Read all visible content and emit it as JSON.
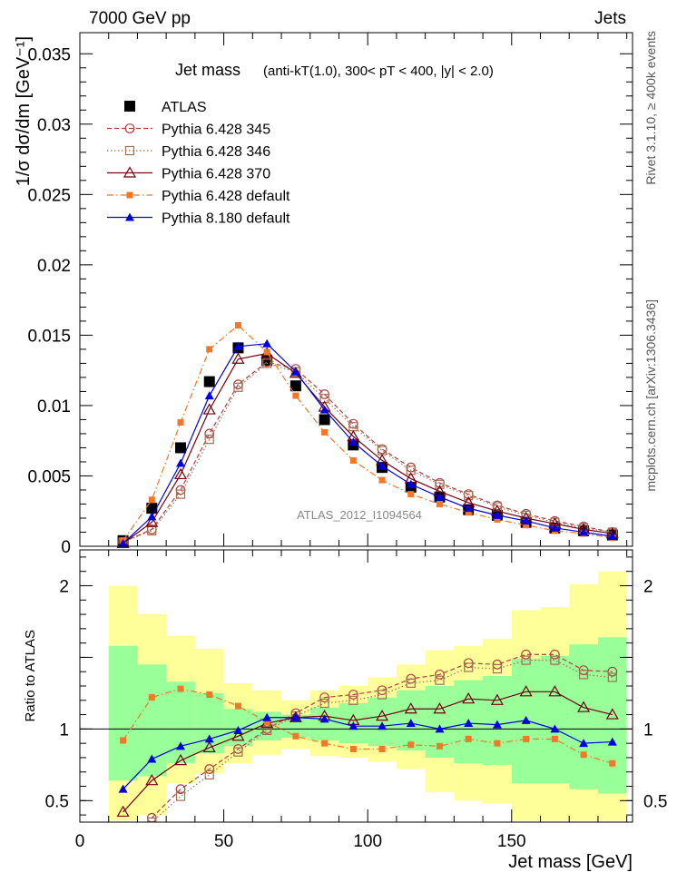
{
  "header": {
    "energy_label": "7000 GeV pp",
    "category_label": "Jets"
  },
  "side_labels": {
    "rivet": "Rivet 3.1.10, ≥ 400k events",
    "mcplots": "mcplots.cern.ch [arXiv:1306.3436]"
  },
  "chart_data": [
    {
      "type": "line",
      "title": "Jet mass",
      "title_detail": "(anti-kT(1.0), 300< pT < 400, |y| < 2.0)",
      "ylabel": "1/σ dσ/dm [GeV⁻¹]",
      "xlim": [
        0,
        192
      ],
      "ylim": [
        0,
        0.0365
      ],
      "yticks": [
        0,
        0.005,
        0.01,
        0.015,
        0.02,
        0.025,
        0.03,
        0.035
      ],
      "ytick_labels": [
        "0",
        "0.005",
        "0.01",
        "0.015",
        "0.02",
        "0.025",
        "0.03",
        "0.035"
      ],
      "analysis_label": "ATLAS_2012_I1094564",
      "legend_position": "top-left",
      "x": [
        15,
        25,
        35,
        45,
        55,
        65,
        75,
        85,
        95,
        105,
        115,
        125,
        135,
        145,
        155,
        165,
        175,
        185
      ],
      "series": [
        {
          "name": "ATLAS",
          "color": "#000000",
          "marker": "square-filled",
          "line": "none",
          "values": [
            0.0004,
            0.0027,
            0.007,
            0.0117,
            0.0141,
            0.0132,
            0.0114,
            0.009,
            0.0072,
            0.0056,
            0.0042,
            0.0035,
            0.0026,
            0.0022,
            0.0017,
            0.0013,
            0.0011,
            0.0008
          ]
        },
        {
          "name": "Pythia 6.428 345",
          "color": "#b04040",
          "marker": "circle-open",
          "line": "dashed",
          "values": [
            0.0003,
            0.0012,
            0.004,
            0.008,
            0.0115,
            0.0131,
            0.0126,
            0.0108,
            0.0087,
            0.0069,
            0.0056,
            0.0045,
            0.0037,
            0.0029,
            0.0023,
            0.0018,
            0.0014,
            0.001
          ]
        },
        {
          "name": "Pythia 6.428 346",
          "color": "#a07050",
          "marker": "square-open",
          "line": "dotted",
          "values": [
            0.0003,
            0.0011,
            0.0037,
            0.0076,
            0.0113,
            0.013,
            0.0124,
            0.0105,
            0.0085,
            0.0068,
            0.0054,
            0.0044,
            0.0036,
            0.0028,
            0.0022,
            0.0017,
            0.0013,
            0.001
          ]
        },
        {
          "name": "Pythia 6.428 370",
          "color": "#700010",
          "marker": "triangle-open",
          "line": "solid",
          "values": [
            0.0002,
            0.0017,
            0.0051,
            0.0097,
            0.0133,
            0.0137,
            0.0123,
            0.0099,
            0.0078,
            0.0061,
            0.0048,
            0.0039,
            0.0031,
            0.0025,
            0.002,
            0.0016,
            0.0012,
            0.0009
          ]
        },
        {
          "name": "Pythia 6.428 default",
          "color": "#f07828",
          "marker": "square-filled-small",
          "line": "dashdot",
          "values": [
            0.0004,
            0.0033,
            0.0088,
            0.014,
            0.0157,
            0.0138,
            0.0107,
            0.0081,
            0.0061,
            0.0047,
            0.0037,
            0.003,
            0.0024,
            0.0019,
            0.0015,
            0.0011,
            0.0009,
            0.0006
          ]
        },
        {
          "name": "Pythia 8.180 default",
          "color": "#0000e0",
          "marker": "triangle-filled",
          "line": "solid",
          "values": [
            0.0002,
            0.0021,
            0.0059,
            0.0107,
            0.0142,
            0.0144,
            0.0124,
            0.0097,
            0.0074,
            0.0057,
            0.0044,
            0.0035,
            0.0027,
            0.0022,
            0.0018,
            0.0013,
            0.001,
            0.0007
          ]
        }
      ]
    },
    {
      "type": "line",
      "xlabel": "Jet mass [GeV]",
      "ylabel": "Ratio to ATLAS",
      "xlim": [
        0,
        192
      ],
      "ylim": [
        0.35,
        2.25
      ],
      "xticks": [
        0,
        50,
        100,
        150
      ],
      "xtick_labels": [
        "0",
        "50",
        "100",
        "150"
      ],
      "yticks": [
        0.5,
        1,
        2
      ],
      "ytick_labels": [
        "0.5",
        "1",
        "2"
      ],
      "reference_line": 1,
      "bands": {
        "bin_edges": [
          10,
          20,
          30,
          40,
          50,
          60,
          70,
          80,
          90,
          100,
          110,
          120,
          130,
          140,
          150,
          160,
          170,
          180,
          190
        ],
        "outer_color": "#ffff99",
        "inner_color": "#99ff99",
        "outer_low": [
          0.36,
          0.4,
          0.62,
          0.69,
          0.76,
          0.82,
          0.86,
          0.81,
          0.8,
          0.77,
          0.72,
          0.56,
          0.5,
          0.48,
          0.36,
          0.36,
          0.36,
          0.36
        ],
        "outer_high": [
          2.0,
          1.8,
          1.65,
          1.56,
          1.32,
          1.27,
          1.2,
          1.27,
          1.3,
          1.36,
          1.45,
          1.55,
          1.58,
          1.63,
          1.83,
          1.85,
          2.01,
          2.1
        ],
        "inner_low": [
          0.64,
          0.67,
          0.76,
          0.83,
          0.88,
          0.92,
          0.94,
          0.92,
          0.9,
          0.88,
          0.85,
          0.8,
          0.76,
          0.75,
          0.62,
          0.62,
          0.58,
          0.55
        ],
        "inner_high": [
          1.58,
          1.45,
          1.33,
          1.25,
          1.14,
          1.12,
          1.1,
          1.15,
          1.18,
          1.22,
          1.27,
          1.3,
          1.34,
          1.37,
          1.49,
          1.51,
          1.59,
          1.64
        ]
      },
      "x": [
        15,
        25,
        35,
        45,
        55,
        65,
        75,
        85,
        95,
        105,
        115,
        125,
        135,
        145,
        155,
        165,
        175,
        185
      ],
      "series": [
        {
          "name": "Pythia 6.428 345",
          "color": "#b04040",
          "marker": "circle-open",
          "line": "dashed",
          "values": [
            null,
            0.38,
            0.58,
            0.72,
            0.86,
            1.0,
            1.11,
            1.22,
            1.24,
            1.27,
            1.35,
            1.38,
            1.46,
            1.45,
            1.52,
            1.52,
            1.41,
            1.4
          ]
        },
        {
          "name": "Pythia 6.428 346",
          "color": "#a07050",
          "marker": "square-open",
          "line": "dotted",
          "values": [
            null,
            0.35,
            0.53,
            0.68,
            0.84,
            0.99,
            1.09,
            1.18,
            1.2,
            1.24,
            1.32,
            1.34,
            1.43,
            1.42,
            1.48,
            1.48,
            1.38,
            1.36
          ]
        },
        {
          "name": "Pythia 6.428 370",
          "color": "#700010",
          "marker": "triangle-open",
          "line": "solid",
          "values": [
            0.42,
            0.64,
            0.78,
            0.87,
            0.95,
            1.04,
            1.08,
            1.09,
            1.06,
            1.09,
            1.14,
            1.14,
            1.21,
            1.2,
            1.26,
            1.26,
            1.15,
            1.1
          ]
        },
        {
          "name": "Pythia 6.428 default",
          "color": "#f07828",
          "marker": "square-filled-small",
          "line": "dashdot",
          "values": [
            0.92,
            1.22,
            1.28,
            1.24,
            1.16,
            1.05,
            0.95,
            0.9,
            0.86,
            0.86,
            0.89,
            0.88,
            0.93,
            0.9,
            0.93,
            0.93,
            0.82,
            0.76
          ]
        },
        {
          "name": "Pythia 8.180 default",
          "color": "#0000e0",
          "marker": "triangle-filled",
          "line": "solid",
          "values": [
            0.58,
            0.79,
            0.88,
            0.93,
            0.99,
            1.08,
            1.08,
            1.07,
            1.02,
            1.02,
            1.04,
            1.0,
            1.04,
            1.03,
            1.06,
            1.0,
            0.9,
            0.91
          ]
        }
      ]
    }
  ]
}
